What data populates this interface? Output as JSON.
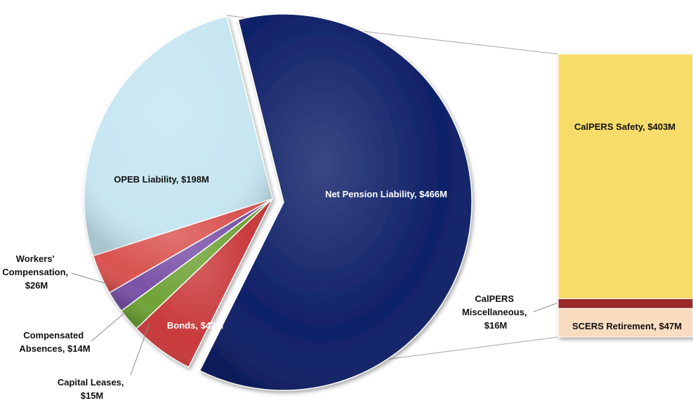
{
  "chart_data": [
    {
      "type": "pie",
      "slices": [
        {
          "label": "Net Pension Liability, $466M",
          "value": 466,
          "color": "#0f2068"
        },
        {
          "label": "Bonds, $42M",
          "value": 42,
          "color": "#c9393a"
        },
        {
          "label": "Capital Leases, $15M",
          "value": 15,
          "color": "#6fa336"
        },
        {
          "label": "Compensated Absences, $14M",
          "value": 14,
          "color": "#7a52a8"
        },
        {
          "label": "Workers' Compensation, $26M",
          "value": 26,
          "color": "#d9534f"
        },
        {
          "label": "OPEB Liability, $198M",
          "value": 198,
          "color": "#c6e6f1"
        }
      ],
      "exploded_slice": "Net Pension Liability, $466M"
    },
    {
      "type": "bar",
      "stacked": true,
      "segments": [
        {
          "label": "CalPERS Safety, $403M",
          "value": 403,
          "color": "#f8dc6b"
        },
        {
          "label": "CalPERS Miscellaneous, $16M",
          "value": 16,
          "color": "#9a2a2a"
        },
        {
          "label": "SCERS Retirement, $47M",
          "value": 47,
          "color": "#fadcc0"
        }
      ]
    }
  ],
  "labels": {
    "net_pension": "Net Pension Liability, $466M",
    "opeb": "OPEB Liability, $198M",
    "bonds": "Bonds, $42M",
    "workers": [
      "Workers'",
      "Compensation,",
      "$26M"
    ],
    "compensated": [
      "Compensated",
      "Absences, $14M"
    ],
    "capital": [
      "Capital Leases,",
      "$15M"
    ],
    "calpers_safety": "CalPERS Safety, $403M",
    "calpers_misc": [
      "CalPERS",
      "Miscellaneous,",
      "$16M"
    ],
    "scers": "SCERS Retirement, $47M"
  }
}
